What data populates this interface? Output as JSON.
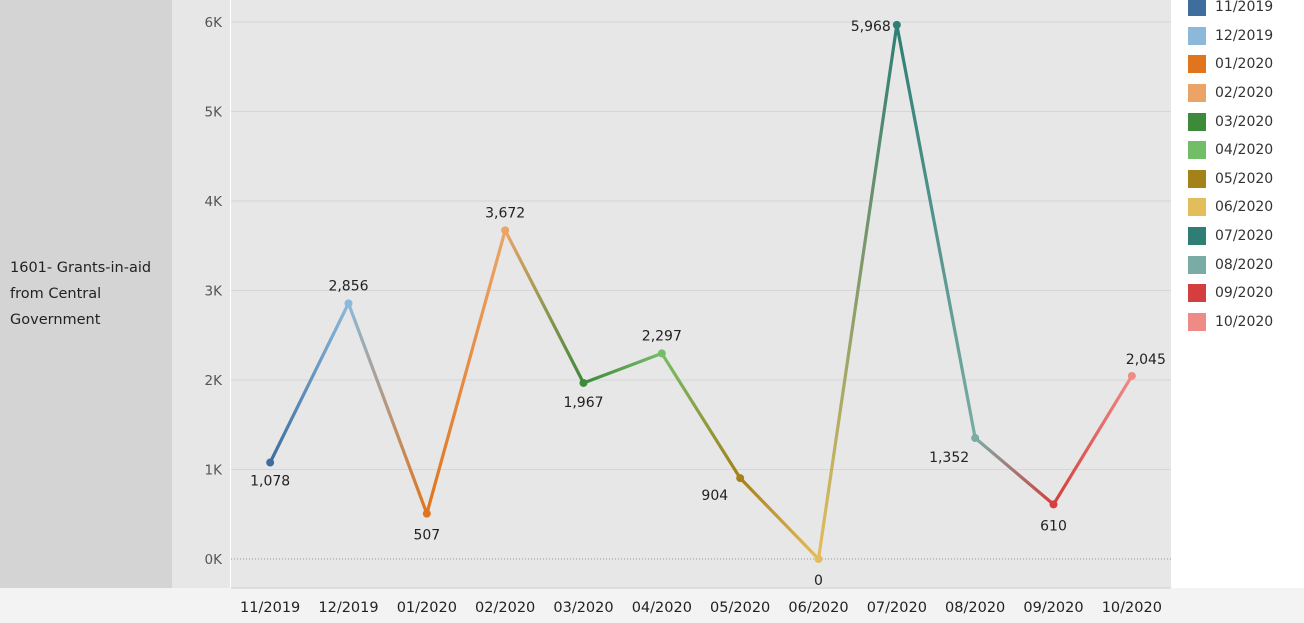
{
  "row_header": {
    "label": "1601- Grants-in-aid\nfrom Central\nGovernment"
  },
  "chart_data": {
    "type": "line",
    "categories": [
      "11/2019",
      "12/2019",
      "01/2020",
      "02/2020",
      "03/2020",
      "04/2020",
      "05/2020",
      "06/2020",
      "07/2020",
      "08/2020",
      "09/2020",
      "10/2020"
    ],
    "values": [
      1078,
      2856,
      507,
      3672,
      1967,
      2297,
      904,
      0,
      5968,
      1352,
      610,
      2045
    ],
    "value_labels": [
      "1,078",
      "2,856",
      "507",
      "3,672",
      "1,967",
      "2,297",
      "904",
      "0",
      "5,968",
      "1,352",
      "610",
      "2,045"
    ],
    "colors": [
      "#3f6d9e",
      "#8cb8d9",
      "#e0751e",
      "#eba468",
      "#3d8a3a",
      "#74bd68",
      "#a5811a",
      "#e3bd5c",
      "#2e7e76",
      "#79aca5",
      "#d33f3e",
      "#ee8b86"
    ],
    "y_ticks": [
      0,
      1000,
      2000,
      3000,
      4000,
      5000,
      6000
    ],
    "y_tick_labels": [
      "0K",
      "1K",
      "2K",
      "3K",
      "4K",
      "5K",
      "6K"
    ],
    "ylim": [
      0,
      6000
    ],
    "grid": true,
    "legend": {
      "position": "right",
      "items": [
        "11/2019",
        "12/2019",
        "01/2020",
        "02/2020",
        "03/2020",
        "04/2020",
        "05/2020",
        "06/2020",
        "07/2020",
        "08/2020",
        "09/2020",
        "10/2020"
      ]
    }
  }
}
